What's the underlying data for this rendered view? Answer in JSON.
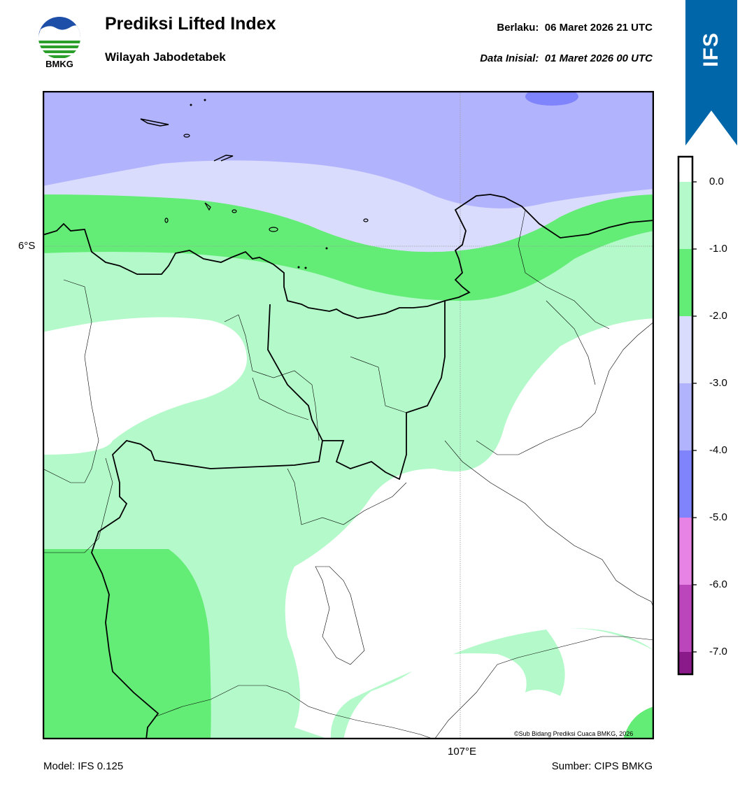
{
  "header": {
    "logo_text": "BMKG",
    "title": "Prediksi Lifted Index",
    "subtitle": "Wilayah Jabodetabek",
    "valid_label": "Berlaku:",
    "valid_time": "06 Maret 2026 21 UTC",
    "init_label": "Data Inisial:",
    "init_time": "01 Maret 2026 00 UTC"
  },
  "badge": {
    "text": "IFS",
    "color": "#0066aa"
  },
  "map": {
    "lat_label": "6°S",
    "lon_label": "107°E",
    "credit": "©Sub Bidang Prediksi Cuaca BMKG, 2026"
  },
  "legend": {
    "ticks": [
      "0.0",
      "-1.0",
      "-2.0",
      "-3.0",
      "-4.0",
      "-5.0",
      "-6.0",
      "-7.0"
    ],
    "colors": {
      "above_0": "#ffffff",
      "0_to_-1": "#b3f9c9",
      "-1_to_-2": "#63ec76",
      "-2_to_-3": "#dadcfd",
      "-3_to_-4": "#b2b3fd",
      "-4_to_-5": "#8084fc",
      "-5_to_-6": "#e783e5",
      "-6_to_-7": "#bb46bb",
      "below_-7": "#8a1a8a"
    }
  },
  "footer": {
    "model": "Model: IFS 0.125",
    "source": "Sumber: CIPS BMKG"
  }
}
